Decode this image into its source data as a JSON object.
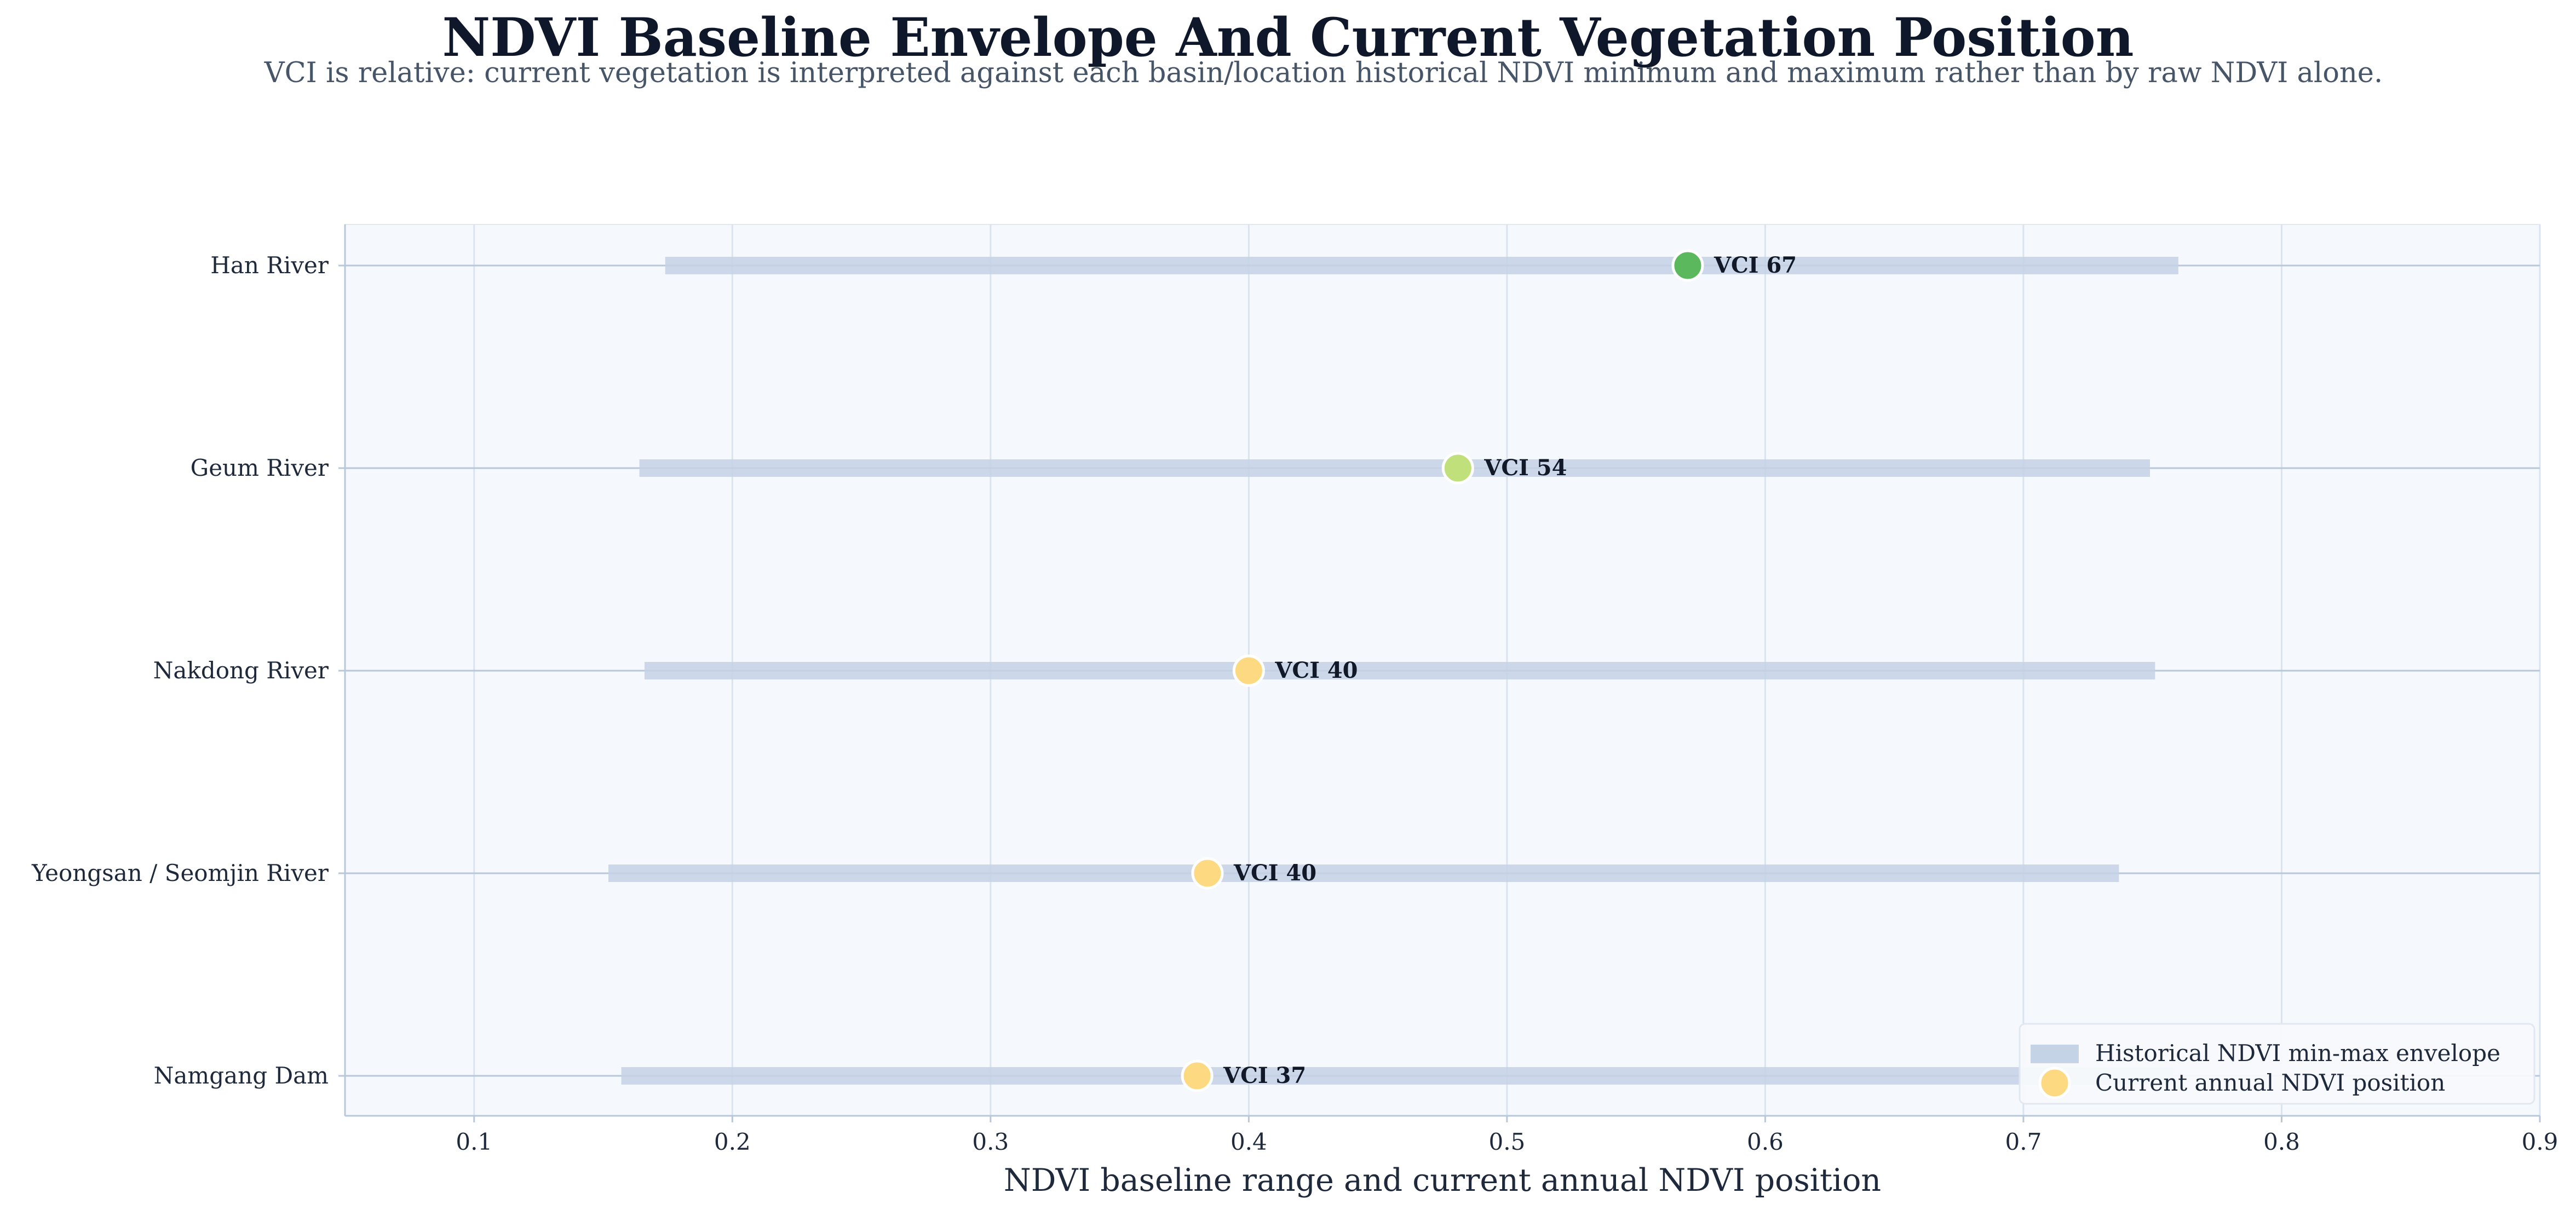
{
  "chart_data": {
    "type": "range-dot",
    "title": "NDVI Baseline Envelope And Current Vegetation Position",
    "subtitle": "VCI is relative: current vegetation is interpreted against each basin/location historical NDVI minimum and maximum rather than by raw NDVI alone.",
    "xlabel": "NDVI baseline range and current annual NDVI position",
    "ylabel": "",
    "xlim": [
      0.05,
      0.9
    ],
    "xticks": [
      "0.1",
      "0.2",
      "0.3",
      "0.4",
      "0.5",
      "0.6",
      "0.7",
      "0.8",
      "0.9"
    ],
    "grid": true,
    "legend_position": "bottom-right",
    "legend": {
      "envelope_label": "Historical NDVI min-max envelope",
      "current_label": "Current annual NDVI position"
    },
    "categories": [
      "Han River",
      "Geum River",
      "Nakdong River",
      "Yeongsan / Seomjin River",
      "Namgang Dam"
    ],
    "rows": [
      {
        "name": "Han River",
        "min": 0.174,
        "max": 0.76,
        "current": 0.57,
        "vci": 67,
        "label": "VCI 67",
        "color": "#5cb85c"
      },
      {
        "name": "Geum River",
        "min": 0.164,
        "max": 0.749,
        "current": 0.481,
        "vci": 54,
        "label": "VCI 54",
        "color": "#bfe07a"
      },
      {
        "name": "Nakdong River",
        "min": 0.166,
        "max": 0.751,
        "current": 0.4,
        "vci": 40,
        "label": "VCI 40",
        "color": "#fdd982"
      },
      {
        "name": "Yeongsan / Seomjin River",
        "min": 0.152,
        "max": 0.737,
        "current": 0.384,
        "vci": 40,
        "label": "VCI 40",
        "color": "#fdd982"
      },
      {
        "name": "Namgang Dam",
        "min": 0.157,
        "max": 0.758,
        "current": 0.38,
        "vci": 37,
        "label": "VCI 37",
        "color": "#fdd982"
      }
    ],
    "colors": {
      "envelope": "#c5d3e6",
      "plot_background": "#f5f9fe",
      "grid": "#dbe3ee",
      "axis": "#b8c7d9",
      "text": "#1e293b",
      "legend_marker": "#fdd982"
    }
  }
}
